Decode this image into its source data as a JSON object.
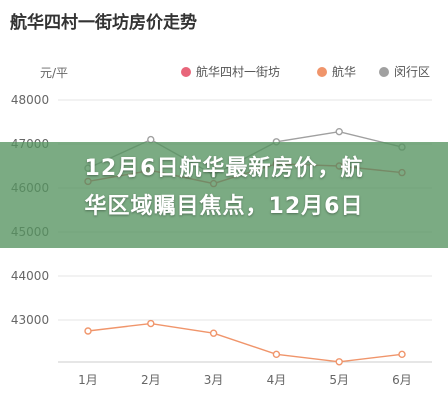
{
  "header": {
    "title": "航华四村一街坊房价走势"
  },
  "banner": {
    "line1": "12月6日航华最新房价，航",
    "line2": "华区域瞩目焦点，12月6日"
  },
  "chart_data": {
    "type": "line",
    "title": "航华四村一街坊房价走势",
    "ylabel": "元/平",
    "categories": [
      "1月",
      "2月",
      "3月",
      "4月",
      "5月",
      "6月"
    ],
    "yticks": [
      43000,
      44000,
      45000,
      46000,
      47000,
      48000
    ],
    "ylim": [
      42200,
      48000
    ],
    "grid": true,
    "legend_position": "top-right",
    "series": [
      {
        "name": "航华四村一街坊",
        "color": "#e8657a",
        "values": [
          46150,
          46400,
          46100,
          46550,
          46500,
          46350
        ]
      },
      {
        "name": "航华",
        "color": "#f0956b",
        "values": [
          42750,
          42920,
          42700,
          42220,
          42050,
          42220
        ]
      },
      {
        "name": "闵行区",
        "color": "#a0a0a0",
        "values": [
          46450,
          47100,
          46300,
          47050,
          47280,
          46930
        ]
      }
    ]
  }
}
